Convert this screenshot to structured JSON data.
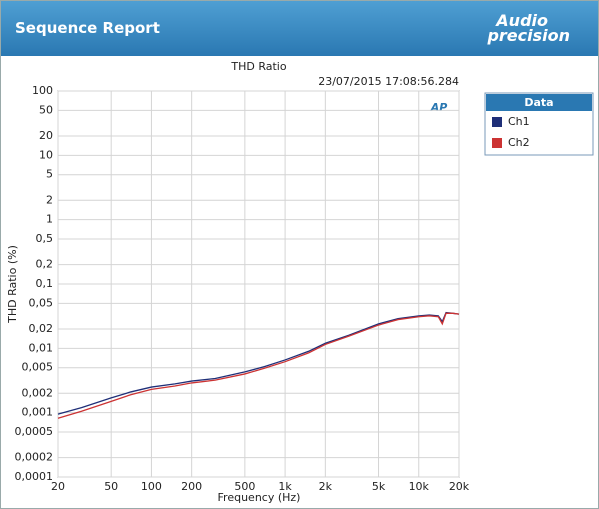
{
  "header": {
    "title": "Sequence Report",
    "logo": [
      "Audio",
      "precision"
    ]
  },
  "chart_data": {
    "type": "line",
    "title": "THD Ratio",
    "subtitle": "23/07/2015 17:08:56.284",
    "annotation": "AP",
    "xlabel": "Frequency (Hz)",
    "ylabel": "THD Ratio (%)",
    "xscale": "log",
    "yscale": "log",
    "grid": true,
    "legend_title": "Data",
    "legend": "outside-right",
    "xlim": [
      20,
      20000
    ],
    "ylim": [
      0.0001,
      100
    ],
    "xticks": [
      20,
      50,
      100,
      200,
      500,
      {
        "value": 1000,
        "label": "1k"
      },
      {
        "value": 2000,
        "label": "2k"
      },
      {
        "value": 5000,
        "label": "5k"
      },
      {
        "value": 10000,
        "label": "10k"
      },
      {
        "value": 20000,
        "label": "20k"
      }
    ],
    "yticks": [
      100,
      50,
      20,
      10,
      5,
      2,
      1,
      {
        "value": 0.5,
        "label": "0,5"
      },
      {
        "value": 0.2,
        "label": "0,2"
      },
      {
        "value": 0.1,
        "label": "0,1"
      },
      {
        "value": 0.05,
        "label": "0,05"
      },
      {
        "value": 0.02,
        "label": "0,02"
      },
      {
        "value": 0.01,
        "label": "0,01"
      },
      {
        "value": 0.005,
        "label": "0,005"
      },
      {
        "value": 0.002,
        "label": "0,002"
      },
      {
        "value": 0.001,
        "label": "0,001"
      },
      {
        "value": 0.0005,
        "label": "0,0005"
      },
      {
        "value": 0.0002,
        "label": "0,0002"
      },
      {
        "value": 0.0001,
        "label": "0,0001"
      }
    ],
    "x": [
      20,
      30,
      50,
      70,
      100,
      150,
      200,
      300,
      500,
      700,
      1000,
      1500,
      2000,
      3000,
      5000,
      7000,
      10000,
      12000,
      14000,
      15000,
      16000,
      18000,
      20000
    ],
    "series": [
      {
        "name": "Ch1",
        "color": "#1f2f78",
        "values": [
          0.00095,
          0.0012,
          0.0017,
          0.0021,
          0.0025,
          0.0028,
          0.0031,
          0.0034,
          0.0043,
          0.0052,
          0.0066,
          0.009,
          0.012,
          0.016,
          0.024,
          0.029,
          0.032,
          0.033,
          0.032,
          0.026,
          0.036,
          0.035,
          0.034
        ]
      },
      {
        "name": "Ch2",
        "color": "#cc3333",
        "values": [
          0.00082,
          0.00105,
          0.0015,
          0.0019,
          0.0023,
          0.0026,
          0.0029,
          0.0032,
          0.004,
          0.0049,
          0.0062,
          0.0085,
          0.0115,
          0.0155,
          0.023,
          0.028,
          0.031,
          0.032,
          0.031,
          0.024,
          0.035,
          0.035,
          0.034
        ]
      }
    ]
  }
}
